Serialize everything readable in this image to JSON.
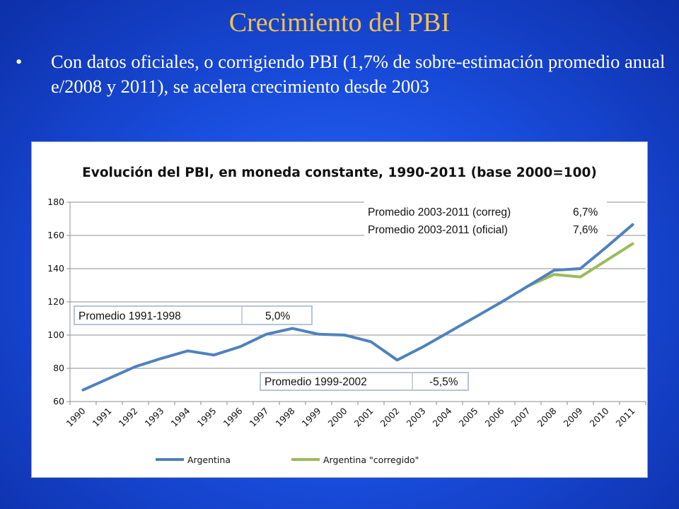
{
  "slide": {
    "title": "Crecimiento del PBI",
    "bullet": "•",
    "text": "Con datos oficiales, o corrigiendo PBI (1,7% de sobre-estimación promedio anual e/2008 y 2011), se acelera crecimiento desde 2003"
  },
  "colors": {
    "argentina": "#4f81bd",
    "corregido": "#9bbb59",
    "title_accent": "#f2c14e"
  },
  "chart_data": {
    "type": "line",
    "title": "Evolución del PBI, en moneda constante, 1990-2011 (base 2000=100)",
    "xlabel": "",
    "ylabel": "",
    "ylim": [
      60,
      180
    ],
    "yticks": [
      60,
      80,
      100,
      120,
      140,
      160,
      180
    ],
    "grid": true,
    "legend_position": "bottom",
    "categories": [
      "1990",
      "1991",
      "1992",
      "1993",
      "1994",
      "1995",
      "1996",
      "1997",
      "1998",
      "1999",
      "2000",
      "2001",
      "2002",
      "2003",
      "2004",
      "2005",
      "2006",
      "2007",
      "2008",
      "2009",
      "2010",
      "2011"
    ],
    "series": [
      {
        "name": "Argentina",
        "values": [
          67,
          74,
          81,
          86,
          90.5,
          88,
          93,
          100.5,
          104,
          100.5,
          100,
          96,
          85,
          93,
          102,
          111,
          120,
          129.5,
          139,
          140,
          153,
          166.5
        ]
      },
      {
        "name": "Argentina \"corregido\"",
        "values": [
          null,
          null,
          null,
          null,
          null,
          null,
          null,
          null,
          null,
          null,
          null,
          null,
          null,
          null,
          null,
          null,
          null,
          129.5,
          136.5,
          135,
          145,
          155
        ]
      }
    ],
    "annotations": [
      {
        "label": "Promedio 2003-2011 (correg)",
        "value": "6,7%"
      },
      {
        "label": "Promedio 2003-2011 (oficial)",
        "value": "7,6%"
      },
      {
        "label": "Promedio 1991-1998",
        "value": "5,0%"
      },
      {
        "label": "Promedio 1999-2002",
        "value": "-5,5%"
      }
    ]
  }
}
